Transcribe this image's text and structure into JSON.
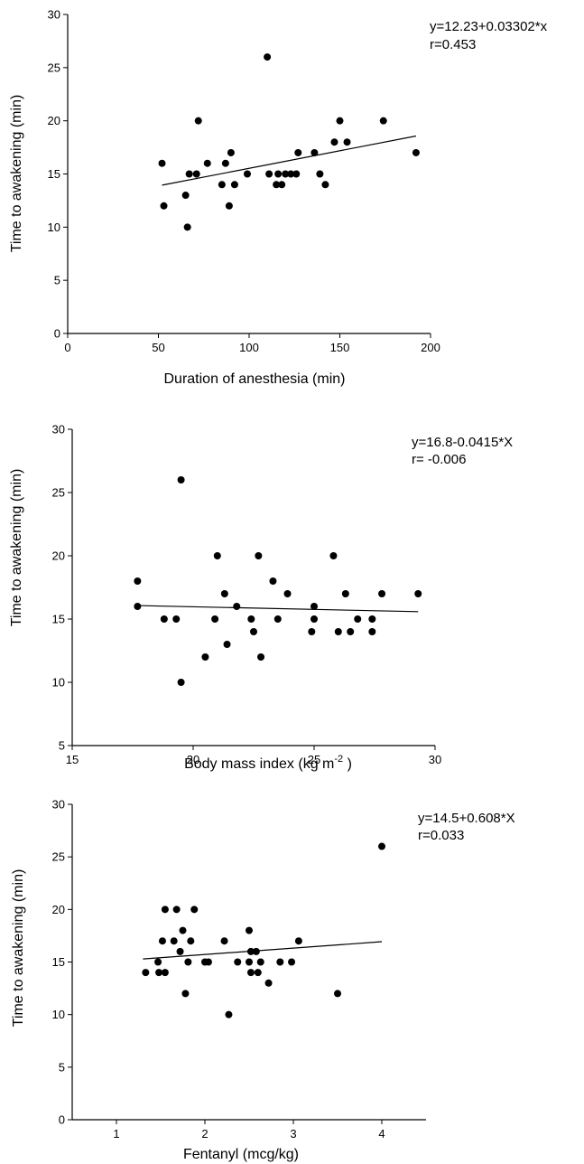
{
  "chart_data": [
    {
      "type": "scatter",
      "xlabel": "Duration of anesthesia (min)",
      "ylabel": "Time to awakening (min)",
      "xlim": [
        0,
        200
      ],
      "ylim": [
        0,
        30
      ],
      "xticks": [
        0,
        50,
        100,
        150,
        200
      ],
      "yticks": [
        0,
        5,
        10,
        15,
        20,
        25,
        30
      ],
      "annotations": [
        "y=12.23+0.03302*x",
        "r=0.453"
      ],
      "regression": {
        "intercept": 12.23,
        "slope": 0.03302,
        "x_range": [
          52,
          192
        ]
      },
      "points": [
        [
          52,
          16
        ],
        [
          53,
          12
        ],
        [
          65,
          13
        ],
        [
          66,
          10
        ],
        [
          67,
          15
        ],
        [
          71,
          15
        ],
        [
          72,
          20
        ],
        [
          77,
          16
        ],
        [
          85,
          14
        ],
        [
          87,
          16
        ],
        [
          89,
          12
        ],
        [
          90,
          17
        ],
        [
          92,
          14
        ],
        [
          99,
          15
        ],
        [
          110,
          26
        ],
        [
          111,
          15
        ],
        [
          115,
          14
        ],
        [
          116,
          15
        ],
        [
          118,
          14
        ],
        [
          120,
          15
        ],
        [
          123,
          15
        ],
        [
          126,
          15
        ],
        [
          127,
          17
        ],
        [
          136,
          17
        ],
        [
          139,
          15
        ],
        [
          142,
          14
        ],
        [
          147,
          18
        ],
        [
          150,
          20
        ],
        [
          154,
          18
        ],
        [
          174,
          20
        ],
        [
          192,
          17
        ]
      ]
    },
    {
      "type": "scatter",
      "xlabel": "Body mass index (kg m",
      "xlabel_sup": "-2",
      "xlabel_suffix": " )",
      "ylabel": "Time to awakening (min)",
      "xlim": [
        15,
        30
      ],
      "ylim": [
        5,
        30
      ],
      "xticks": [
        15,
        20,
        25,
        30
      ],
      "yticks": [
        5,
        10,
        15,
        20,
        25,
        30
      ],
      "annotations": [
        "y=16.8-0.0415*X",
        "r= -0.006"
      ],
      "regression": {
        "intercept": 16.8,
        "slope": -0.0415,
        "x_range": [
          17.7,
          29.3
        ]
      },
      "points": [
        [
          17.7,
          18
        ],
        [
          17.7,
          16
        ],
        [
          18.8,
          15
        ],
        [
          19.3,
          15
        ],
        [
          19.5,
          26
        ],
        [
          19.5,
          10
        ],
        [
          20.5,
          12
        ],
        [
          20.9,
          15
        ],
        [
          21.0,
          20
        ],
        [
          21.3,
          17
        ],
        [
          21.4,
          13
        ],
        [
          21.8,
          16
        ],
        [
          22.4,
          15
        ],
        [
          22.5,
          14
        ],
        [
          22.7,
          20
        ],
        [
          22.8,
          12
        ],
        [
          23.3,
          18
        ],
        [
          23.5,
          15
        ],
        [
          23.9,
          17
        ],
        [
          24.9,
          14
        ],
        [
          25.0,
          16
        ],
        [
          25.0,
          15
        ],
        [
          25.8,
          20
        ],
        [
          26.0,
          14
        ],
        [
          26.3,
          17
        ],
        [
          26.5,
          14
        ],
        [
          26.8,
          15
        ],
        [
          27.4,
          15
        ],
        [
          27.4,
          14
        ],
        [
          27.8,
          17
        ],
        [
          29.3,
          17
        ]
      ]
    },
    {
      "type": "scatter",
      "xlabel": "Fentanyl (mcg/kg)",
      "ylabel": "Time to awakening (min)",
      "xlim": [
        0.5,
        4.5
      ],
      "ylim": [
        0,
        30
      ],
      "xticks": [
        1,
        2,
        3,
        4
      ],
      "yticks": [
        0,
        5,
        10,
        15,
        20,
        25,
        30
      ],
      "annotations": [
        "y=14.5+0.608*X",
        "r=0.033"
      ],
      "regression": {
        "intercept": 14.5,
        "slope": 0.608,
        "x_range": [
          1.3,
          4.0
        ]
      },
      "points": [
        [
          1.33,
          14
        ],
        [
          1.47,
          15
        ],
        [
          1.48,
          14
        ],
        [
          1.52,
          17
        ],
        [
          1.55,
          20
        ],
        [
          1.55,
          14
        ],
        [
          1.65,
          17
        ],
        [
          1.68,
          20
        ],
        [
          1.72,
          16
        ],
        [
          1.75,
          18
        ],
        [
          1.78,
          12
        ],
        [
          1.81,
          15
        ],
        [
          1.84,
          17
        ],
        [
          1.88,
          20
        ],
        [
          2.0,
          15
        ],
        [
          2.04,
          15
        ],
        [
          2.22,
          17
        ],
        [
          2.27,
          10
        ],
        [
          2.37,
          15
        ],
        [
          2.5,
          18
        ],
        [
          2.5,
          15
        ],
        [
          2.52,
          16
        ],
        [
          2.52,
          14
        ],
        [
          2.58,
          16
        ],
        [
          2.6,
          14
        ],
        [
          2.63,
          15
        ],
        [
          2.72,
          13
        ],
        [
          2.85,
          15
        ],
        [
          2.98,
          15
        ],
        [
          3.06,
          17
        ],
        [
          3.5,
          12
        ],
        [
          4.0,
          26
        ]
      ]
    }
  ]
}
